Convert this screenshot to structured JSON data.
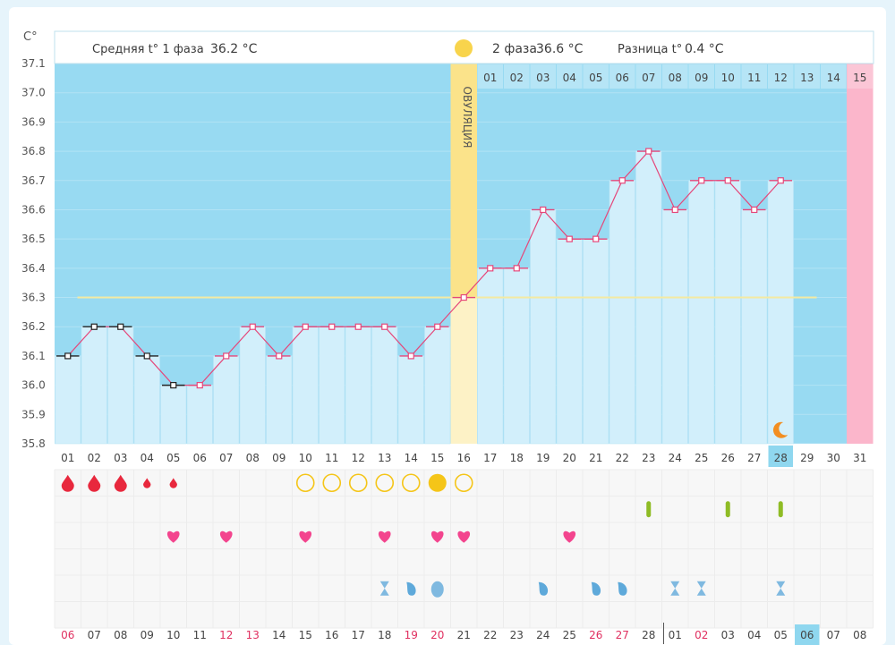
{
  "header": {
    "unit": "C°",
    "phase1_label": "Средняя t° 1 фаза",
    "phase1_value": "36.2 °C",
    "phase2_label": "2 фаза",
    "phase2_value": "36.6 °C",
    "diff_label": "Разница t°",
    "diff_value": "0.4 °C",
    "ovulation_label": "ОВУЛЯЦИЯ"
  },
  "chart_data": {
    "type": "line",
    "ylabel": "C°",
    "ylim": [
      35.8,
      37.1
    ],
    "y_ticks": [
      "37.1",
      "37.0",
      "36.9",
      "36.8",
      "36.7",
      "36.6",
      "36.5",
      "36.4",
      "36.3",
      "36.2",
      "36.1",
      "36.0",
      "35.9",
      "35.8"
    ],
    "cycle_days": [
      "01",
      "02",
      "03",
      "04",
      "05",
      "06",
      "07",
      "08",
      "09",
      "10",
      "11",
      "12",
      "13",
      "14",
      "15",
      "16",
      "17",
      "18",
      "19",
      "20",
      "21",
      "22",
      "23",
      "24",
      "25",
      "26",
      "27",
      "28",
      "29",
      "30",
      "31"
    ],
    "temperatures": [
      36.1,
      36.2,
      36.2,
      36.1,
      36.0,
      36.0,
      36.1,
      36.2,
      36.1,
      36.2,
      36.2,
      36.2,
      36.2,
      36.1,
      36.2,
      36.3,
      36.4,
      36.4,
      36.6,
      36.5,
      36.5,
      36.7,
      36.8,
      36.6,
      36.7,
      36.7,
      36.6,
      36.7
    ],
    "marker_black_days": [
      1,
      2,
      3,
      4,
      5
    ],
    "coverline": 36.3,
    "ovulation_day": 16,
    "luteal_days": [
      "01",
      "02",
      "03",
      "04",
      "05",
      "06",
      "07",
      "08",
      "09",
      "10",
      "11",
      "12",
      "13",
      "14",
      "15"
    ],
    "highlighted_day": "28",
    "highlight_color": "#8fd7ef",
    "calendar_dates": [
      "06",
      "07",
      "08",
      "09",
      "10",
      "11",
      "12",
      "13",
      "14",
      "15",
      "16",
      "17",
      "18",
      "19",
      "20",
      "21",
      "22",
      "23",
      "24",
      "25",
      "26",
      "27",
      "28",
      "01",
      "02",
      "03",
      "04",
      "05",
      "06",
      "07",
      "08"
    ],
    "calendar_red_dates_idx": [
      0,
      6,
      7,
      13,
      14,
      20,
      21,
      24
    ],
    "menstruation": [
      {
        "day": 1,
        "size": "large"
      },
      {
        "day": 2,
        "size": "large"
      },
      {
        "day": 3,
        "size": "large"
      },
      {
        "day": 4,
        "size": "small"
      },
      {
        "day": 5,
        "size": "small"
      }
    ],
    "ovulation_test_empty_days": [
      10,
      11,
      12,
      13,
      14,
      16
    ],
    "ovulation_test_positive_days": [
      15
    ],
    "pregnancy_test_days": [
      23,
      26,
      28
    ],
    "intercourse_days": [
      5,
      7,
      10,
      13,
      15,
      16,
      20
    ],
    "discharge": [
      {
        "day": 13,
        "icon": "hourglass"
      },
      {
        "day": 14,
        "icon": "drop"
      },
      {
        "day": 15,
        "icon": "drop-large"
      },
      {
        "day": 19,
        "icon": "drop"
      },
      {
        "day": 21,
        "icon": "drop"
      },
      {
        "day": 22,
        "icon": "drop"
      },
      {
        "day": 24,
        "icon": "hourglass"
      },
      {
        "day": 25,
        "icon": "hourglass"
      },
      {
        "day": 28,
        "icon": "hourglass"
      }
    ],
    "moon_day": 28,
    "colors": {
      "phase1_bg": "#98daf2",
      "bar": "#d2effb",
      "line": "#e5477a",
      "ovulation": "#fbe38a",
      "period": "#fbb6cb",
      "coverline": "#f4eaa2",
      "drop": "#e8283d",
      "pregnancy": "#8fbc25",
      "heart": "#f3458e",
      "circle": "#f5c518",
      "moon": "#f28e21"
    }
  }
}
